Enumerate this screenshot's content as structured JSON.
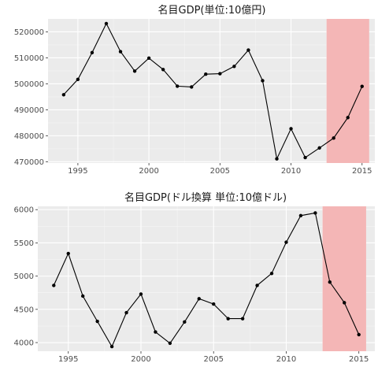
{
  "chart_data": [
    {
      "type": "line",
      "title": "名目GDP(単位:10億円)",
      "x": [
        1994,
        1995,
        1996,
        1997,
        1998,
        1999,
        2000,
        2001,
        2002,
        2003,
        2004,
        2005,
        2006,
        2007,
        2008,
        2009,
        2010,
        2011,
        2012,
        2013,
        2014,
        2015
      ],
      "y": [
        495800,
        501700,
        512000,
        523200,
        512400,
        504900,
        509900,
        505500,
        499100,
        498800,
        503700,
        503900,
        506700,
        513000,
        501200,
        471100,
        482700,
        471600,
        475300,
        479100,
        487000,
        499000
      ],
      "xlim": [
        1992.9,
        2015.9
      ],
      "ylim": [
        469500,
        525000
      ],
      "xticks": [
        1995,
        2000,
        2005,
        2010,
        2015
      ],
      "yticks": [
        470000,
        480000,
        490000,
        500000,
        510000,
        520000
      ],
      "highlight_x": [
        2012.5,
        2015.5
      ],
      "highlight_color": "#f4b6b6",
      "panel_color": "#ebebeb",
      "line_color": "#000000"
    },
    {
      "type": "line",
      "title": "名目GDP(ドル換算 単位:10億ドル)",
      "x": [
        1994,
        1995,
        1996,
        1997,
        1998,
        1999,
        2000,
        2001,
        2002,
        2003,
        2004,
        2005,
        2006,
        2007,
        2008,
        2009,
        2010,
        2011,
        2012,
        2013,
        2014,
        2015
      ],
      "y": [
        4860,
        5340,
        4700,
        4320,
        3940,
        4450,
        4730,
        4160,
        3990,
        4310,
        4660,
        4580,
        4360,
        4360,
        4860,
        5040,
        5510,
        5910,
        5950,
        4910,
        4600,
        4120
      ],
      "xlim": [
        1992.9,
        2016.1
      ],
      "ylim": [
        3870,
        6050
      ],
      "xticks": [
        1995,
        2000,
        2005,
        2010,
        2015
      ],
      "yticks": [
        4000,
        4500,
        5000,
        5500,
        6000
      ],
      "highlight_x": [
        2012.5,
        2015.5
      ],
      "highlight_color": "#f4b6b6",
      "panel_color": "#ebebeb",
      "line_color": "#000000"
    }
  ]
}
